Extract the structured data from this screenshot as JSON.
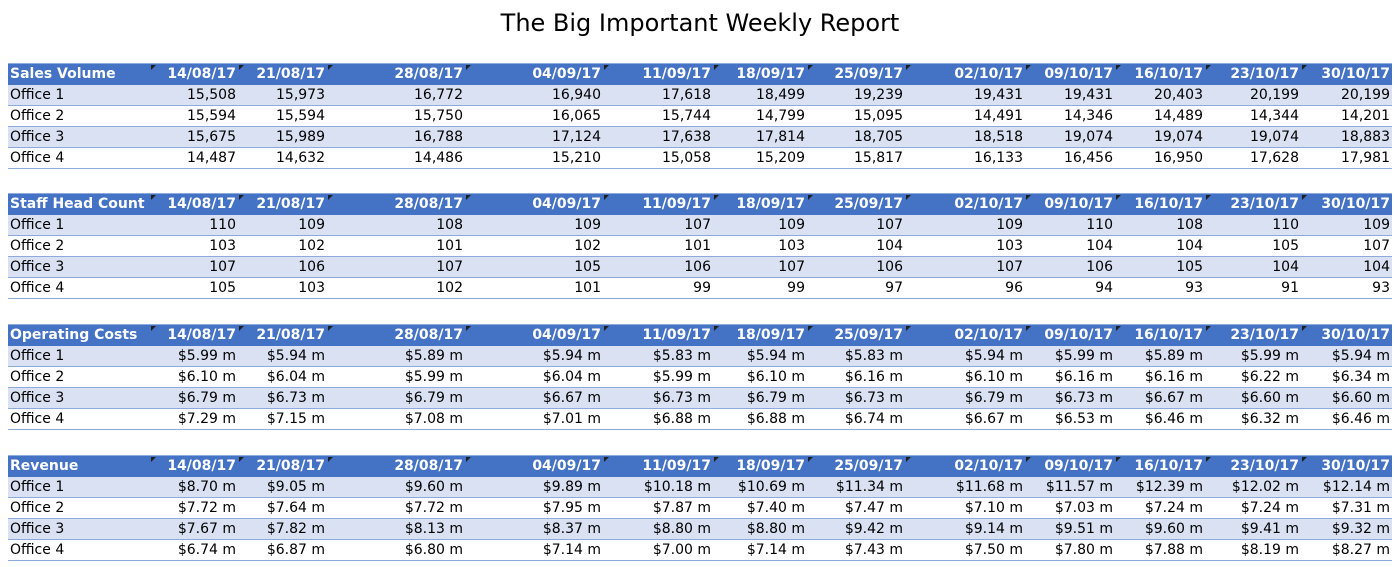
{
  "title": "The Big Important Weekly Report",
  "columns": [
    "14/08/17",
    "21/08/17",
    "28/08/17",
    "04/09/17",
    "11/09/17",
    "18/09/17",
    "25/09/17",
    "02/10/17",
    "09/10/17",
    "16/10/17",
    "23/10/17",
    "30/10/17"
  ],
  "tables": [
    {
      "heading": "Sales Volume",
      "rows": [
        {
          "label": "Office 1",
          "values": [
            "15,508",
            "15,973",
            "16,772",
            "16,940",
            "17,618",
            "18,499",
            "19,239",
            "19,431",
            "19,431",
            "20,403",
            "20,199",
            "20,199"
          ]
        },
        {
          "label": "Office 2",
          "values": [
            "15,594",
            "15,594",
            "15,750",
            "16,065",
            "15,744",
            "14,799",
            "15,095",
            "14,491",
            "14,346",
            "14,489",
            "14,344",
            "14,201"
          ]
        },
        {
          "label": "Office 3",
          "values": [
            "15,675",
            "15,989",
            "16,788",
            "17,124",
            "17,638",
            "17,814",
            "18,705",
            "18,518",
            "19,074",
            "19,074",
            "19,074",
            "18,883"
          ]
        },
        {
          "label": "Office 4",
          "values": [
            "14,487",
            "14,632",
            "14,486",
            "15,210",
            "15,058",
            "15,209",
            "15,817",
            "16,133",
            "16,456",
            "16,950",
            "17,628",
            "17,981"
          ]
        }
      ]
    },
    {
      "heading": "Staff Head Count",
      "rows": [
        {
          "label": "Office 1",
          "values": [
            "110",
            "109",
            "108",
            "109",
            "107",
            "109",
            "107",
            "109",
            "110",
            "108",
            "110",
            "109"
          ]
        },
        {
          "label": "Office 2",
          "values": [
            "103",
            "102",
            "101",
            "102",
            "101",
            "103",
            "104",
            "103",
            "104",
            "104",
            "105",
            "107"
          ]
        },
        {
          "label": "Office 3",
          "values": [
            "107",
            "106",
            "107",
            "105",
            "106",
            "107",
            "106",
            "107",
            "106",
            "105",
            "104",
            "104"
          ]
        },
        {
          "label": "Office 4",
          "values": [
            "105",
            "103",
            "102",
            "101",
            "99",
            "99",
            "97",
            "96",
            "94",
            "93",
            "91",
            "93"
          ]
        }
      ]
    },
    {
      "heading": "Operating Costs",
      "rows": [
        {
          "label": "Office 1",
          "values": [
            "$5.99 m",
            "$5.94 m",
            "$5.89 m",
            "$5.94 m",
            "$5.83 m",
            "$5.94 m",
            "$5.83 m",
            "$5.94 m",
            "$5.99 m",
            "$5.89 m",
            "$5.99 m",
            "$5.94 m"
          ]
        },
        {
          "label": "Office 2",
          "values": [
            "$6.10 m",
            "$6.04 m",
            "$5.99 m",
            "$6.04 m",
            "$5.99 m",
            "$6.10 m",
            "$6.16 m",
            "$6.10 m",
            "$6.16 m",
            "$6.16 m",
            "$6.22 m",
            "$6.34 m"
          ]
        },
        {
          "label": "Office 3",
          "values": [
            "$6.79 m",
            "$6.73 m",
            "$6.79 m",
            "$6.67 m",
            "$6.73 m",
            "$6.79 m",
            "$6.73 m",
            "$6.79 m",
            "$6.73 m",
            "$6.67 m",
            "$6.60 m",
            "$6.60 m"
          ]
        },
        {
          "label": "Office 4",
          "values": [
            "$7.29 m",
            "$7.15 m",
            "$7.08 m",
            "$7.01 m",
            "$6.88 m",
            "$6.88 m",
            "$6.74 m",
            "$6.67 m",
            "$6.53 m",
            "$6.46 m",
            "$6.32 m",
            "$6.46 m"
          ]
        }
      ]
    },
    {
      "heading": "Revenue",
      "rows": [
        {
          "label": "Office 1",
          "values": [
            "$8.70 m",
            "$9.05 m",
            "$9.60 m",
            "$9.89 m",
            "$10.18 m",
            "$10.69 m",
            "$11.34 m",
            "$11.68 m",
            "$11.57 m",
            "$12.39 m",
            "$12.02 m",
            "$12.14 m"
          ]
        },
        {
          "label": "Office 2",
          "values": [
            "$7.72 m",
            "$7.64 m",
            "$7.72 m",
            "$7.95 m",
            "$7.87 m",
            "$7.40 m",
            "$7.47 m",
            "$7.10 m",
            "$7.03 m",
            "$7.24 m",
            "$7.24 m",
            "$7.31 m"
          ]
        },
        {
          "label": "Office 3",
          "values": [
            "$7.67 m",
            "$7.82 m",
            "$8.13 m",
            "$8.37 m",
            "$8.80 m",
            "$8.80 m",
            "$9.42 m",
            "$9.14 m",
            "$9.51 m",
            "$9.60 m",
            "$9.41 m",
            "$9.32 m"
          ]
        },
        {
          "label": "Office 4",
          "values": [
            "$6.74 m",
            "$6.87 m",
            "$6.80 m",
            "$7.14 m",
            "$7.00 m",
            "$7.14 m",
            "$7.43 m",
            "$7.50 m",
            "$7.80 m",
            "$7.88 m",
            "$8.19 m",
            "$8.27 m"
          ]
        }
      ]
    }
  ],
  "colors": {
    "header_bg": "#4472c4",
    "band_bg": "#d9e1f2",
    "border": "#8ea9db"
  }
}
